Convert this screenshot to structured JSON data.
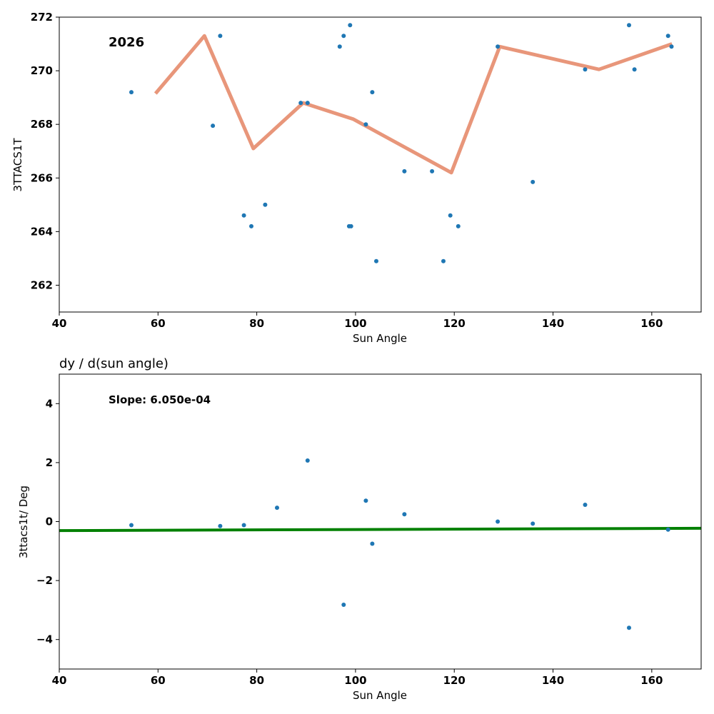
{
  "chart_data": [
    {
      "type": "scatter",
      "title": "",
      "annotation": "2026",
      "xlabel": "Sun Angle",
      "ylabel": "3TTACS1T",
      "xlim": [
        40,
        170
      ],
      "ylim": [
        261,
        272
      ],
      "xticks": [
        40,
        60,
        80,
        100,
        120,
        140,
        160
      ],
      "yticks": [
        262,
        264,
        266,
        268,
        270,
        272
      ],
      "colors": {
        "points": "#1f77b4",
        "line": "#e8967a"
      },
      "series": [
        {
          "name": "data",
          "kind": "scatter",
          "x": [
            54.6,
            71.1,
            72.6,
            77.4,
            78.9,
            81.7,
            88.9,
            90.3,
            96.8,
            97.6,
            98.7,
            98.9,
            99.1,
            102.1,
            103.4,
            104.2,
            109.9,
            115.5,
            117.8,
            119.2,
            120.8,
            128.8,
            135.9,
            146.5,
            155.4,
            156.5,
            163.3,
            164.0
          ],
          "y": [
            269.2,
            267.95,
            271.3,
            264.6,
            264.2,
            265.0,
            268.8,
            268.8,
            270.9,
            271.3,
            264.2,
            271.7,
            264.2,
            268.0,
            269.2,
            262.9,
            266.25,
            266.25,
            262.9,
            264.6,
            264.2,
            270.9,
            265.85,
            270.05,
            271.7,
            270.05,
            271.3,
            270.9
          ]
        },
        {
          "name": "smoothed",
          "kind": "line",
          "x": [
            59.5,
            69.4,
            79.3,
            89.4,
            99.5,
            119.4,
            129.2,
            149.3,
            164.1
          ],
          "y": [
            269.15,
            271.3,
            267.1,
            268.8,
            268.2,
            266.2,
            270.9,
            270.05,
            271.0
          ]
        }
      ]
    },
    {
      "type": "scatter",
      "title": "dy / d(sun angle)",
      "annotation": "Slope: 6.050e-04",
      "xlabel": "Sun Angle",
      "ylabel": "3ttacs1t/ Deg",
      "xlim": [
        40,
        170
      ],
      "ylim": [
        -5,
        5
      ],
      "xticks": [
        40,
        60,
        80,
        100,
        120,
        140,
        160
      ],
      "yticks": [
        -4,
        -2,
        0,
        2,
        4
      ],
      "colors": {
        "points": "#1f77b4",
        "line": "#008000"
      },
      "series": [
        {
          "name": "derivative",
          "kind": "scatter",
          "x": [
            54.6,
            72.6,
            77.4,
            84.1,
            90.3,
            97.6,
            102.1,
            103.4,
            109.9,
            128.8,
            135.9,
            146.5,
            155.4,
            163.3
          ],
          "y": [
            -0.12,
            -0.15,
            -0.12,
            0.47,
            2.07,
            -2.82,
            0.71,
            -0.75,
            0.25,
            0.0,
            -0.07,
            0.57,
            -3.6,
            -0.27
          ]
        },
        {
          "name": "fit",
          "kind": "line",
          "x": [
            40,
            170
          ],
          "y": [
            -0.305,
            -0.227
          ]
        }
      ]
    }
  ]
}
